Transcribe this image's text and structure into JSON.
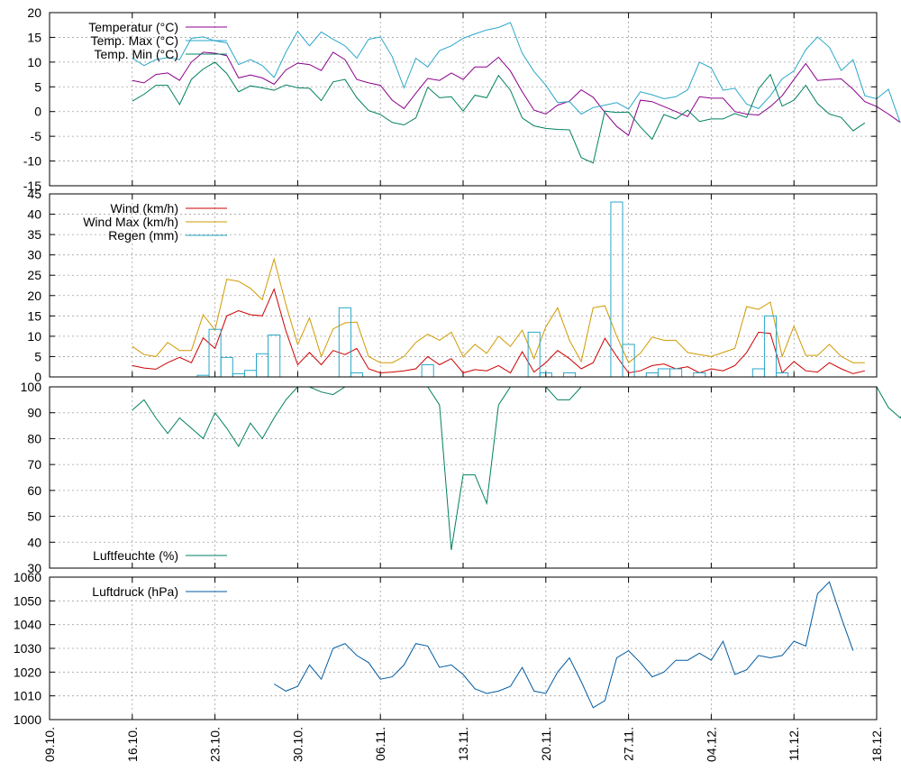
{
  "x_tick_labels": [
    "09.10.",
    "16.10.",
    "23.10.",
    "30.10.",
    "06.11.",
    "13.11.",
    "20.11.",
    "27.11.",
    "04.12.",
    "11.12.",
    "18.12."
  ],
  "chart_data": [
    {
      "type": "line",
      "ylim": [
        -15,
        20
      ],
      "yticks": [
        -15,
        -10,
        -5,
        0,
        5,
        10,
        15,
        20
      ],
      "grid": true,
      "legend_position": "top-left",
      "x_start_label": "16.10.",
      "x_step_days": 1,
      "series": [
        {
          "name": "Temperatur (°C)",
          "color": "#8b008b",
          "values": [
            6.3,
            5.8,
            7.5,
            7.8,
            6.3,
            10,
            12,
            11.8,
            11.3,
            6.8,
            7.4,
            6.8,
            5.5,
            8.4,
            9.8,
            9.5,
            8.3,
            12,
            10.5,
            6.5,
            5.8,
            5.3,
            2.3,
            0.6,
            3.7,
            6.7,
            6.3,
            7.8,
            6.5,
            9,
            9,
            11,
            8.2,
            4,
            0.3,
            -0.5,
            1.3,
            2.1,
            4.4,
            2.9,
            -0.2,
            -3,
            -4.8,
            2.3,
            2,
            1,
            0,
            -1,
            3,
            2.7,
            2.7,
            0,
            -0.5,
            -0.7,
            1,
            3.2,
            6.5,
            9.7,
            6.3,
            6.5,
            6.6,
            4.5,
            2,
            1,
            -0.5,
            -2.2
          ]
        },
        {
          "name": "Temp. Max (°C)",
          "color": "#2aa7c9",
          "values": [
            10.8,
            9.3,
            10.5,
            10.9,
            10.5,
            14.8,
            15.1,
            14.3,
            13.9,
            9.5,
            10.5,
            9.3,
            6.9,
            12,
            16.2,
            13.3,
            16.1,
            14.6,
            13.3,
            10.8,
            14.6,
            15.1,
            11.1,
            4.8,
            10.8,
            9,
            12.3,
            13.3,
            14.8,
            15.7,
            16.5,
            17,
            18,
            11.8,
            8.1,
            5.3,
            1.8,
            2,
            -0.5,
            0.8,
            1.3,
            1.8,
            0.5,
            4,
            3.4,
            2.6,
            3,
            4.4,
            10,
            8.8,
            4.3,
            4.7,
            1.5,
            0.6,
            3.2,
            6.6,
            8.2,
            12.5,
            15.1,
            13,
            8.3,
            10.5,
            3.2,
            2.6,
            4.5,
            -2.3
          ]
        },
        {
          "name": "Temp. Min (°C)",
          "color": "#008060",
          "values": [
            2.1,
            3.5,
            5.3,
            5.3,
            1.4,
            6.5,
            8.6,
            10,
            7.7,
            4,
            5.2,
            4.8,
            4.3,
            5.4,
            4.8,
            4.7,
            2.2,
            6,
            6.5,
            2.8,
            0.2,
            -0.6,
            -2.2,
            -2.7,
            -1.3,
            4.9,
            2.8,
            3,
            0.1,
            3.3,
            2.8,
            7.3,
            4.3,
            -1.3,
            -2.9,
            -3.4,
            -3.6,
            -3.7,
            -9.3,
            -10.4,
            0.1,
            -0.2,
            -0.1,
            -3.1,
            -5.6,
            -0.6,
            -1.5,
            0.3,
            -2,
            -1.5,
            -1.5,
            -0.4,
            -1.2,
            4.6,
            7.5,
            1.1,
            2.3,
            5.3,
            1.6,
            -0.5,
            -1.2,
            -3.9,
            -2.3
          ]
        }
      ]
    },
    {
      "type": "line",
      "ylim": [
        0,
        45
      ],
      "yticks": [
        0,
        5,
        10,
        15,
        20,
        25,
        30,
        35,
        40,
        45
      ],
      "grid": true,
      "legend_position": "top-left",
      "series": [
        {
          "name": "Wind (km/h)",
          "color": "#cc0000",
          "values": [
            2.8,
            2.2,
            1.9,
            3.5,
            4.8,
            3.5,
            9.6,
            7,
            15,
            16.3,
            15.3,
            15,
            21.6,
            11.3,
            3,
            6,
            3,
            6.5,
            5.5,
            7,
            2,
            1,
            1.2,
            1.5,
            2,
            5,
            3,
            4.5,
            1,
            1.8,
            1.5,
            2.8,
            1,
            6.2,
            1.2,
            3.5,
            6.5,
            4.5,
            2,
            3.5,
            9.5,
            5,
            1,
            1.5,
            2.8,
            3.2,
            2,
            2.5,
            1,
            2,
            1.5,
            2.8,
            6,
            11,
            10.7,
            1,
            3.8,
            1.5,
            1.2,
            3.5,
            2,
            0.8,
            1.5
          ]
        },
        {
          "name": "Wind Max (km/h)",
          "color": "#d09a00",
          "values": [
            7.5,
            5.5,
            5,
            8.5,
            6.5,
            6.5,
            15.3,
            11.5,
            24,
            23.5,
            21.8,
            19,
            29,
            17.8,
            8,
            14.5,
            5,
            11.8,
            13.3,
            13.5,
            5,
            3.5,
            3.5,
            5,
            8.5,
            10.5,
            9,
            11,
            5,
            8,
            5.8,
            10,
            7.5,
            11.5,
            4.5,
            12.3,
            17,
            9,
            3.8,
            17,
            17.5,
            10,
            3.5,
            5.8,
            9.8,
            9,
            9,
            6,
            5.5,
            5,
            6,
            7,
            17.3,
            16.6,
            18.4,
            5,
            12.5,
            5.3,
            5.3,
            8,
            5,
            3.5,
            3.5
          ]
        },
        {
          "name": "Regen (mm)",
          "color": "#2aa7c9",
          "type": "bar",
          "values": [
            0,
            0,
            0,
            0,
            0,
            0,
            0.4,
            11.7,
            4.8,
            0.8,
            1.6,
            5.7,
            10.3,
            0,
            0,
            0,
            0,
            0,
            17,
            1,
            0,
            0,
            0,
            0,
            0,
            3,
            0,
            0,
            0,
            0,
            0,
            0,
            0,
            0,
            11,
            1,
            0,
            1,
            0,
            0,
            0,
            43,
            8,
            0,
            1,
            2,
            2,
            0,
            1,
            0,
            0,
            0,
            0,
            2,
            15,
            1,
            0,
            0,
            0,
            0,
            0,
            0,
            0,
            0
          ]
        }
      ]
    },
    {
      "type": "line",
      "ylim": [
        30,
        100
      ],
      "yticks": [
        30,
        40,
        50,
        60,
        70,
        80,
        90,
        100
      ],
      "grid": true,
      "legend_position": "bottom-left",
      "series": [
        {
          "name": "Luftfeuchte (%)",
          "color": "#008060",
          "values": [
            91,
            95,
            88,
            82,
            88,
            84,
            80,
            90,
            84,
            77,
            86,
            80,
            88,
            95,
            100,
            100,
            98,
            97,
            100,
            100,
            100,
            100,
            100,
            100,
            100,
            100,
            93,
            37,
            66,
            66,
            55,
            93,
            100,
            100,
            100,
            100,
            95,
            95,
            100,
            100,
            100,
            100,
            100,
            100,
            100,
            100,
            100,
            100,
            100,
            100,
            100,
            100,
            100,
            100,
            100,
            100,
            100,
            100,
            100,
            100,
            100,
            100,
            100,
            100,
            92,
            88,
            97,
            100
          ]
        }
      ]
    },
    {
      "type": "line",
      "ylim": [
        1000,
        1060
      ],
      "yticks": [
        1000,
        1010,
        1020,
        1030,
        1040,
        1050,
        1060
      ],
      "grid": true,
      "legend_position": "top-left",
      "x_start_label": "28.10.",
      "series": [
        {
          "name": "Luftdruck (hPa)",
          "color": "#005aa0",
          "values": [
            1015,
            1012,
            1014,
            1023,
            1017,
            1030,
            1032,
            1027,
            1024,
            1017,
            1018,
            1023,
            1032,
            1031,
            1022,
            1023,
            1019,
            1013,
            1011,
            1012,
            1014,
            1022,
            1012,
            1011,
            1020,
            1026,
            1016,
            1005,
            1008,
            1026,
            1029,
            1024,
            1018,
            1020,
            1025,
            1025,
            1028,
            1025,
            1033,
            1019,
            1021,
            1027,
            1026,
            1027,
            1033,
            1031,
            1053,
            1058,
            1043,
            1029
          ]
        }
      ]
    }
  ]
}
